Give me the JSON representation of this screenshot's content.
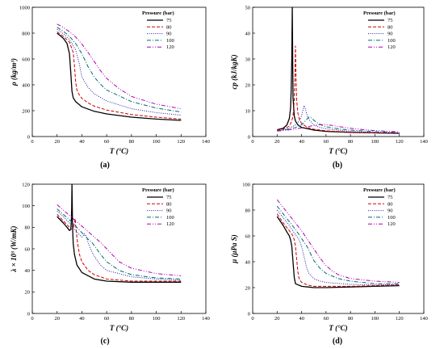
{
  "figure": {
    "legend_title": "Pressure (bar)",
    "styles": [
      {
        "label": "75",
        "color": "#000000",
        "dash": ""
      },
      {
        "label": "80",
        "color": "#cc0000",
        "dash": "4,2"
      },
      {
        "label": "90",
        "color": "#1a1aaa",
        "dash": "1,1.6"
      },
      {
        "label": "100",
        "color": "#006b6b",
        "dash": "5,2,1,2"
      },
      {
        "label": "120",
        "color": "#b000b0",
        "dash": "5,2,1,2,1,2"
      }
    ]
  },
  "chart_data": [
    {
      "type": "line",
      "caption": "(a)",
      "ylabel": "ρ (kg/m³)",
      "xlabel": "T (°C)",
      "xlim": [
        0,
        140
      ],
      "ylim": [
        0,
        1000
      ],
      "xticks": [
        0,
        20,
        40,
        60,
        80,
        100,
        120,
        140
      ],
      "yticks": [
        0,
        200,
        400,
        600,
        800,
        1000
      ],
      "legend_position": "top-right",
      "series": [
        {
          "name": "75",
          "x": [
            20,
            25,
            28,
            30,
            31,
            32,
            33,
            35,
            40,
            50,
            60,
            80,
            100,
            120
          ],
          "y": [
            800,
            760,
            720,
            640,
            500,
            350,
            300,
            270,
            230,
            195,
            175,
            150,
            135,
            125
          ]
        },
        {
          "name": "80",
          "x": [
            20,
            25,
            30,
            33,
            34,
            35,
            36,
            38,
            40,
            45,
            50,
            60,
            80,
            100,
            120
          ],
          "y": [
            810,
            775,
            730,
            650,
            550,
            420,
            360,
            320,
            295,
            260,
            235,
            205,
            170,
            150,
            135
          ]
        },
        {
          "name": "90",
          "x": [
            20,
            25,
            30,
            35,
            38,
            40,
            45,
            50,
            60,
            80,
            100,
            120
          ],
          "y": [
            830,
            795,
            750,
            670,
            560,
            460,
            380,
            330,
            275,
            215,
            185,
            165
          ]
        },
        {
          "name": "100",
          "x": [
            20,
            25,
            30,
            35,
            40,
            45,
            50,
            55,
            60,
            80,
            100,
            120
          ],
          "y": [
            845,
            815,
            775,
            720,
            640,
            540,
            460,
            405,
            360,
            270,
            220,
            190
          ]
        },
        {
          "name": "120",
          "x": [
            20,
            25,
            30,
            35,
            40,
            45,
            50,
            55,
            60,
            70,
            80,
            100,
            120
          ],
          "y": [
            870,
            845,
            810,
            770,
            715,
            650,
            580,
            510,
            450,
            370,
            310,
            250,
            215
          ]
        }
      ]
    },
    {
      "type": "line",
      "caption": "(b)",
      "ylabel": "cp (kJ/kgK)",
      "xlabel": "T (°C)",
      "xlim": [
        0,
        140
      ],
      "ylim": [
        0,
        50
      ],
      "xticks": [
        0,
        20,
        40,
        60,
        80,
        100,
        120,
        140
      ],
      "yticks": [
        0,
        10,
        20,
        30,
        40,
        50
      ],
      "legend_position": "top-right",
      "series": [
        {
          "name": "75",
          "x": [
            20,
            25,
            28,
            30,
            31,
            31.5,
            32,
            32.4,
            33,
            34,
            35,
            37,
            40,
            50,
            60,
            80,
            100,
            120
          ],
          "y": [
            2.6,
            3.2,
            4.5,
            7,
            11,
            18,
            30,
            50,
            15,
            8,
            6,
            4.5,
            3.5,
            2.5,
            2,
            1.6,
            1.4,
            1.2
          ]
        },
        {
          "name": "80",
          "x": [
            20,
            25,
            30,
            32,
            33,
            34,
            34.5,
            35,
            35.5,
            36,
            37,
            38,
            40,
            45,
            50,
            60,
            80,
            100,
            120
          ],
          "y": [
            2.5,
            2.9,
            4,
            6,
            8,
            14,
            22,
            35,
            22,
            14,
            9,
            7,
            5,
            3.5,
            2.8,
            2.2,
            1.7,
            1.4,
            1.3
          ]
        },
        {
          "name": "90",
          "x": [
            20,
            25,
            30,
            35,
            38,
            40,
            41,
            42,
            43,
            44,
            45,
            47,
            50,
            55,
            60,
            70,
            80,
            100,
            120
          ],
          "y": [
            2.3,
            2.6,
            3.2,
            4.5,
            6,
            8,
            10,
            12,
            11,
            9,
            7.5,
            6,
            4.5,
            3.5,
            3,
            2.5,
            2,
            1.6,
            1.4
          ]
        },
        {
          "name": "100",
          "x": [
            20,
            25,
            30,
            35,
            40,
            42,
            44,
            46,
            48,
            50,
            53,
            56,
            60,
            70,
            80,
            100,
            120
          ],
          "y": [
            2.2,
            2.5,
            2.9,
            3.5,
            4.5,
            5.5,
            6.5,
            7.5,
            7.2,
            6.3,
            5.3,
            4.5,
            3.8,
            3,
            2.5,
            1.9,
            1.6
          ]
        },
        {
          "name": "120",
          "x": [
            20,
            25,
            30,
            35,
            40,
            45,
            50,
            55,
            60,
            65,
            70,
            80,
            90,
            100,
            120
          ],
          "y": [
            2.1,
            2.3,
            2.6,
            2.9,
            3.3,
            3.8,
            4.3,
            4.6,
            4.6,
            4.3,
            3.9,
            3.2,
            2.7,
            2.3,
            1.8
          ]
        }
      ]
    },
    {
      "type": "line",
      "caption": "(c)",
      "ylabel": "λ × 10³ (W/mK)",
      "xlabel": "T (°C)",
      "xlim": [
        0,
        140
      ],
      "ylim": [
        0,
        120
      ],
      "xticks": [
        0,
        20,
        40,
        60,
        80,
        100,
        120,
        140
      ],
      "yticks": [
        0,
        20,
        40,
        60,
        80,
        100,
        120
      ],
      "legend_position": "top-right",
      "series": [
        {
          "name": "75",
          "x": [
            20,
            25,
            28,
            30,
            31,
            31.5,
            31.8,
            32,
            32.5,
            33,
            34,
            36,
            40,
            50,
            60,
            80,
            100,
            120
          ],
          "y": [
            90,
            84,
            80,
            77,
            78,
            85,
            100,
            120,
            80,
            65,
            55,
            45,
            38,
            32,
            30,
            29,
            29,
            29
          ]
        },
        {
          "name": "80",
          "x": [
            20,
            25,
            30,
            32,
            33,
            34,
            34.5,
            35,
            36,
            37,
            38,
            40,
            45,
            50,
            60,
            80,
            100,
            120
          ],
          "y": [
            92,
            86,
            80,
            78,
            79,
            84,
            88,
            82,
            70,
            62,
            55,
            48,
            40,
            36,
            32,
            30,
            30,
            30
          ]
        },
        {
          "name": "90",
          "x": [
            20,
            25,
            30,
            35,
            38,
            40,
            41,
            42,
            43,
            44,
            45,
            47,
            50,
            55,
            60,
            80,
            100,
            120
          ],
          "y": [
            95,
            90,
            84,
            77,
            73,
            71,
            72,
            74,
            73,
            70,
            66,
            60,
            53,
            45,
            40,
            34,
            32,
            31
          ]
        },
        {
          "name": "100",
          "x": [
            20,
            25,
            30,
            35,
            40,
            45,
            48,
            50,
            55,
            60,
            70,
            80,
            100,
            120
          ],
          "y": [
            97,
            92,
            87,
            81,
            75,
            69,
            66,
            63,
            55,
            48,
            40,
            36,
            33,
            32
          ]
        },
        {
          "name": "120",
          "x": [
            20,
            25,
            30,
            35,
            40,
            45,
            50,
            55,
            60,
            65,
            70,
            80,
            100,
            120
          ],
          "y": [
            101,
            96,
            91,
            86,
            81,
            76,
            71,
            66,
            60,
            54,
            48,
            42,
            37,
            35
          ]
        }
      ]
    },
    {
      "type": "line",
      "caption": "(d)",
      "ylabel": "μ (μPa S)",
      "xlabel": "T (°C)",
      "xlim": [
        0,
        140
      ],
      "ylim": [
        0,
        100
      ],
      "xticks": [
        0,
        20,
        40,
        60,
        80,
        100,
        120,
        140
      ],
      "yticks": [
        0,
        20,
        40,
        60,
        80,
        100
      ],
      "legend_position": "top-right",
      "series": [
        {
          "name": "75",
          "x": [
            20,
            25,
            28,
            30,
            31,
            32,
            33,
            34,
            35,
            40,
            50,
            60,
            80,
            100,
            120
          ],
          "y": [
            75,
            68,
            63,
            60,
            57,
            52,
            40,
            28,
            23,
            21,
            20,
            20,
            20.5,
            21,
            21.5
          ]
        },
        {
          "name": "80",
          "x": [
            20,
            25,
            30,
            33,
            34,
            35,
            36,
            37,
            38,
            40,
            45,
            50,
            60,
            80,
            100,
            120
          ],
          "y": [
            77,
            70,
            64,
            60,
            57,
            52,
            42,
            32,
            27,
            24,
            22,
            21,
            21,
            21,
            21.5,
            22
          ]
        },
        {
          "name": "90",
          "x": [
            20,
            25,
            30,
            35,
            38,
            40,
            42,
            44,
            46,
            50,
            55,
            60,
            80,
            100,
            120
          ],
          "y": [
            80,
            74,
            68,
            61,
            57,
            52,
            44,
            36,
            31,
            27,
            25,
            24,
            22.5,
            22,
            22.5
          ]
        },
        {
          "name": "100",
          "x": [
            20,
            25,
            30,
            35,
            40,
            45,
            48,
            50,
            55,
            60,
            70,
            80,
            100,
            120
          ],
          "y": [
            83,
            77,
            71,
            65,
            58,
            51,
            45,
            41,
            35,
            31,
            27,
            25,
            23,
            23
          ]
        },
        {
          "name": "120",
          "x": [
            20,
            25,
            30,
            35,
            40,
            45,
            50,
            55,
            60,
            65,
            70,
            80,
            100,
            120
          ],
          "y": [
            88,
            82,
            76,
            70,
            64,
            57,
            50,
            43,
            37,
            33,
            30,
            27,
            25,
            24
          ]
        }
      ]
    }
  ]
}
